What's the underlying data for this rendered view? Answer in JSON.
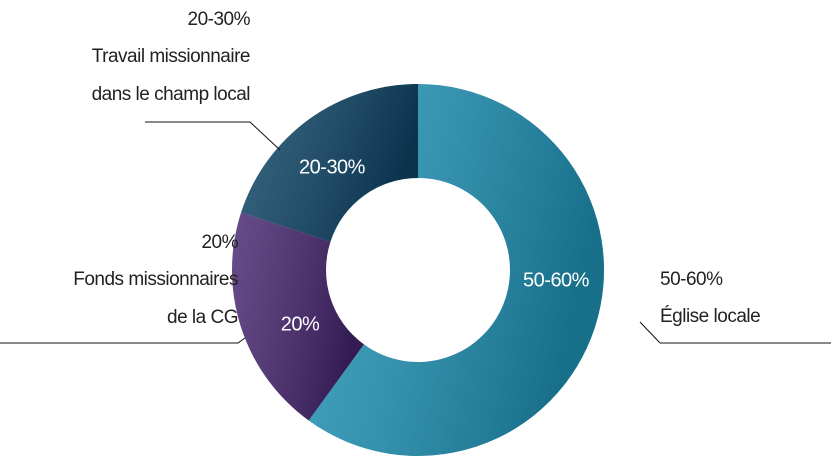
{
  "chart_data": {
    "type": "donut",
    "categories": [
      [
        "Église locale"
      ],
      [
        "Fonds missionnaires",
        "de la CG"
      ],
      [
        "Travail missionnaire",
        "dans le champ local"
      ]
    ],
    "values": [
      60,
      20,
      20
    ],
    "value_labels": [
      "50-60%",
      "20%",
      "20-30%"
    ],
    "colors": [
      "#1f94b8",
      "#45256f",
      "#0d4466"
    ]
  }
}
